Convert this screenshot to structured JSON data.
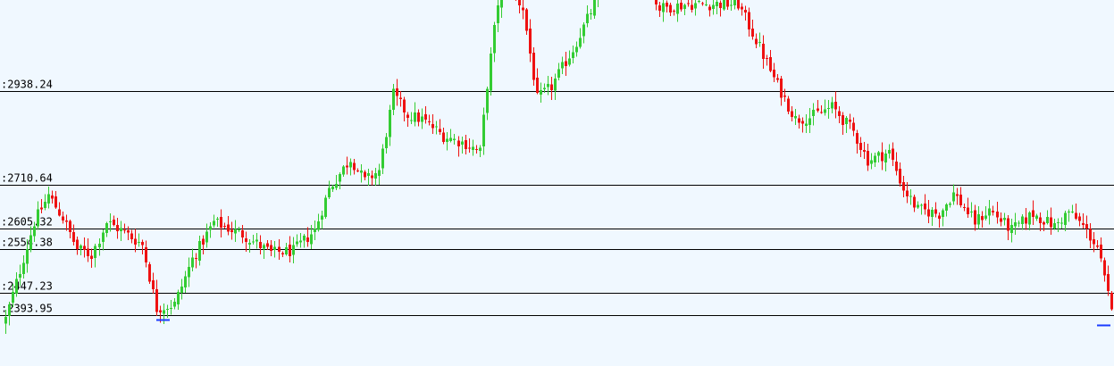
{
  "colors": {
    "background": "#f0f8ff",
    "up": "#33cc33",
    "down": "#ee1111",
    "level_line": "#000000",
    "marker": "#1a3cff"
  },
  "chart_data": {
    "type": "candlestick",
    "ylim": [
      2270,
      3160
    ],
    "grid": false,
    "levels": [
      {
        "value": 2938.24,
        "label": ":2938.24"
      },
      {
        "value": 2710.64,
        "label": ":2710.64"
      },
      {
        "value": 2605.32,
        "label": ":2605.32"
      },
      {
        "value": 2554.38,
        "label": ":2554.38"
      },
      {
        "value": 2447.23,
        "label": ":2447.23"
      },
      {
        "value": 2393.95,
        "label": ":2393.95"
      }
    ],
    "markers": [
      {
        "index": 44,
        "value": 2382,
        "color": "#1a3cff"
      },
      {
        "index": 306,
        "value": 2370,
        "color": "#1a3cff"
      }
    ],
    "anchors": [
      [
        0,
        2385
      ],
      [
        8,
        2620
      ],
      [
        12,
        2685
      ],
      [
        16,
        2630
      ],
      [
        20,
        2555
      ],
      [
        24,
        2540
      ],
      [
        28,
        2620
      ],
      [
        33,
        2595
      ],
      [
        38,
        2565
      ],
      [
        42,
        2410
      ],
      [
        47,
        2420
      ],
      [
        52,
        2530
      ],
      [
        58,
        2620
      ],
      [
        66,
        2590
      ],
      [
        74,
        2545
      ],
      [
        80,
        2550
      ],
      [
        86,
        2600
      ],
      [
        90,
        2700
      ],
      [
        96,
        2775
      ],
      [
        100,
        2720
      ],
      [
        104,
        2745
      ],
      [
        108,
        2930
      ],
      [
        112,
        2880
      ],
      [
        116,
        2870
      ],
      [
        122,
        2830
      ],
      [
        128,
        2810
      ],
      [
        132,
        2790
      ],
      [
        134,
        2955
      ],
      [
        138,
        3220
      ],
      [
        144,
        3140
      ],
      [
        148,
        2920
      ],
      [
        152,
        2950
      ],
      [
        158,
        3040
      ],
      [
        164,
        3150
      ],
      [
        168,
        3240
      ],
      [
        176,
        3240
      ],
      [
        182,
        3140
      ],
      [
        190,
        3150
      ],
      [
        196,
        3150
      ],
      [
        204,
        3150
      ],
      [
        210,
        3045
      ],
      [
        214,
        2970
      ],
      [
        220,
        2870
      ],
      [
        224,
        2875
      ],
      [
        230,
        2900
      ],
      [
        236,
        2840
      ],
      [
        240,
        2770
      ],
      [
        246,
        2790
      ],
      [
        250,
        2700
      ],
      [
        254,
        2650
      ],
      [
        260,
        2640
      ],
      [
        264,
        2690
      ],
      [
        270,
        2620
      ],
      [
        274,
        2650
      ],
      [
        280,
        2600
      ],
      [
        286,
        2640
      ],
      [
        292,
        2610
      ],
      [
        296,
        2645
      ],
      [
        300,
        2610
      ],
      [
        304,
        2560
      ],
      [
        308,
        2400
      ],
      [
        310,
        2330
      ]
    ]
  }
}
